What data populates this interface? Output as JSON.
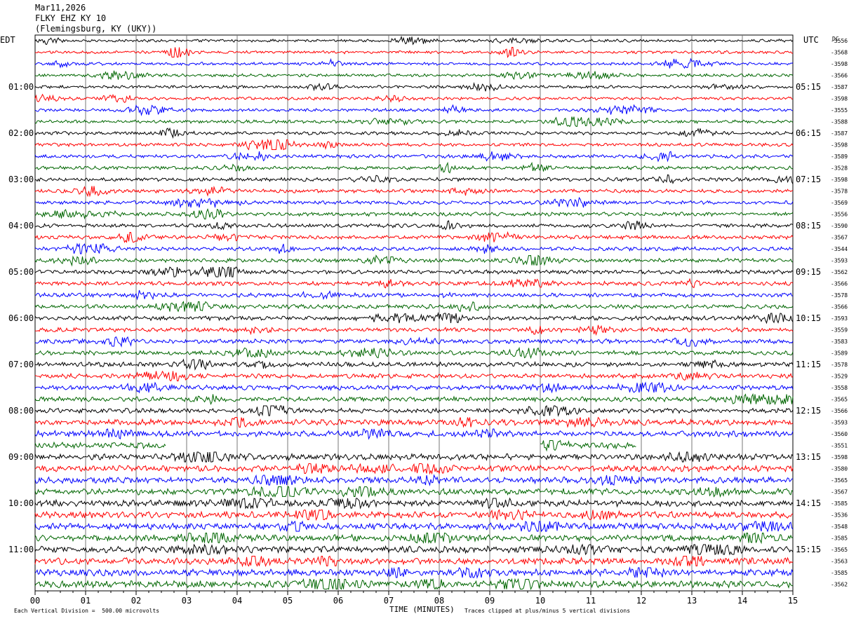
{
  "header": {
    "date": "Mar11,2026",
    "station": "FLKY EHZ KY 10",
    "location": "(Flemingsburg, KY (UKY))"
  },
  "left_timezone": "EDT",
  "right_timezone": "UTC",
  "right_column_label": "DC",
  "footer": {
    "scale_note": "Each Vertical Division =  500.00 microvolts",
    "xlabel": "TIME (MINUTES)",
    "clip_note": "Traces clipped at plus/minus 5 vertical divisions"
  },
  "chart_data": {
    "type": "line",
    "title": "FLKY EHZ KY 10",
    "xlabel": "TIME (MINUTES)",
    "x_ticks": [
      "00",
      "01",
      "02",
      "03",
      "04",
      "05",
      "06",
      "07",
      "08",
      "09",
      "10",
      "11",
      "12",
      "13",
      "14",
      "15"
    ],
    "xlim": [
      0,
      15
    ],
    "grid": "vertical lines each minute",
    "trace_colors": [
      "#000000",
      "#ff0000",
      "#0000ff",
      "#006600"
    ],
    "left_hour_labels": [
      "01:00",
      "02:00",
      "03:00",
      "04:00",
      "05:00",
      "06:00",
      "07:00",
      "08:00",
      "09:00",
      "10:00",
      "11:00"
    ],
    "right_hour_labels": [
      "05:15",
      "06:15",
      "07:15",
      "08:15",
      "09:15",
      "10:15",
      "11:15",
      "12:15",
      "13:15",
      "14:15",
      "15:15"
    ],
    "dc_offsets": [
      "-3556",
      "-3568",
      "-3598",
      "-3566",
      "-3587",
      "-3598",
      "-3555",
      "-3588",
      "-3587",
      "-3598",
      "-3589",
      "-3528",
      "-3598",
      "-3578",
      "-3569",
      "-3556",
      "-3590",
      "-3567",
      "-3544",
      "-3593",
      "-3562",
      "-3566",
      "-3578",
      "-3566",
      "-3593",
      "-3559",
      "-3583",
      "-3589",
      "-3578",
      "-3529",
      "-3558",
      "-3565",
      "-3566",
      "-3593",
      "-3560",
      "-3551",
      "-3598",
      "-3580",
      "-3565",
      "-3567",
      "-3585",
      "-3536",
      "-3548",
      "-3585",
      "-3565",
      "-3563",
      "-3585",
      "-3562"
    ],
    "gaps": [
      {
        "trace": 35,
        "from_minute": 2.6,
        "to_minute": 10.0
      },
      {
        "trace": 35,
        "from_minute": 11.9,
        "to_minute": 15.0
      }
    ]
  }
}
